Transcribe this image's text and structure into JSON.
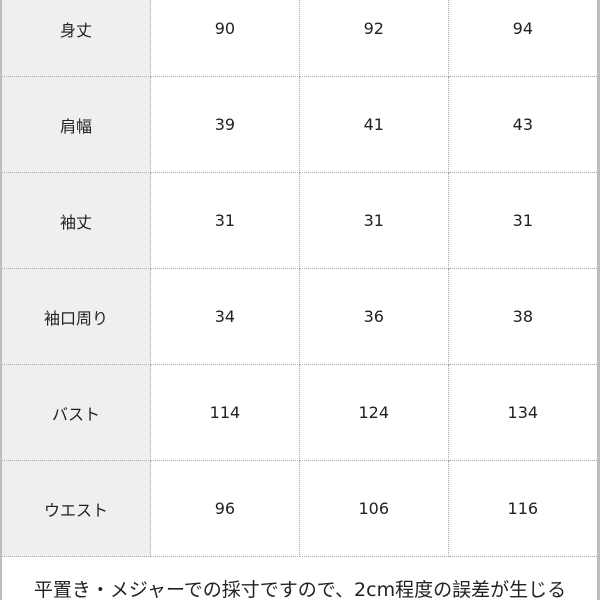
{
  "rows": [
    {
      "label": "身丈",
      "values": [
        "90",
        "92",
        "94"
      ]
    },
    {
      "label": "肩幅",
      "values": [
        "39",
        "41",
        "43"
      ]
    },
    {
      "label": "袖丈",
      "values": [
        "31",
        "31",
        "31"
      ]
    },
    {
      "label": "袖口周り",
      "values": [
        "34",
        "36",
        "38"
      ]
    },
    {
      "label": "バスト",
      "values": [
        "114",
        "124",
        "134"
      ]
    },
    {
      "label": "ウエスト",
      "values": [
        "96",
        "106",
        "116"
      ]
    }
  ],
  "note": "平置き・メジャーでの採寸ですので、2cm程度の誤差が生じる",
  "colors": {
    "label_bg": "#efefef",
    "border": "#aaaaaa",
    "frame": "#bdbdbd"
  }
}
